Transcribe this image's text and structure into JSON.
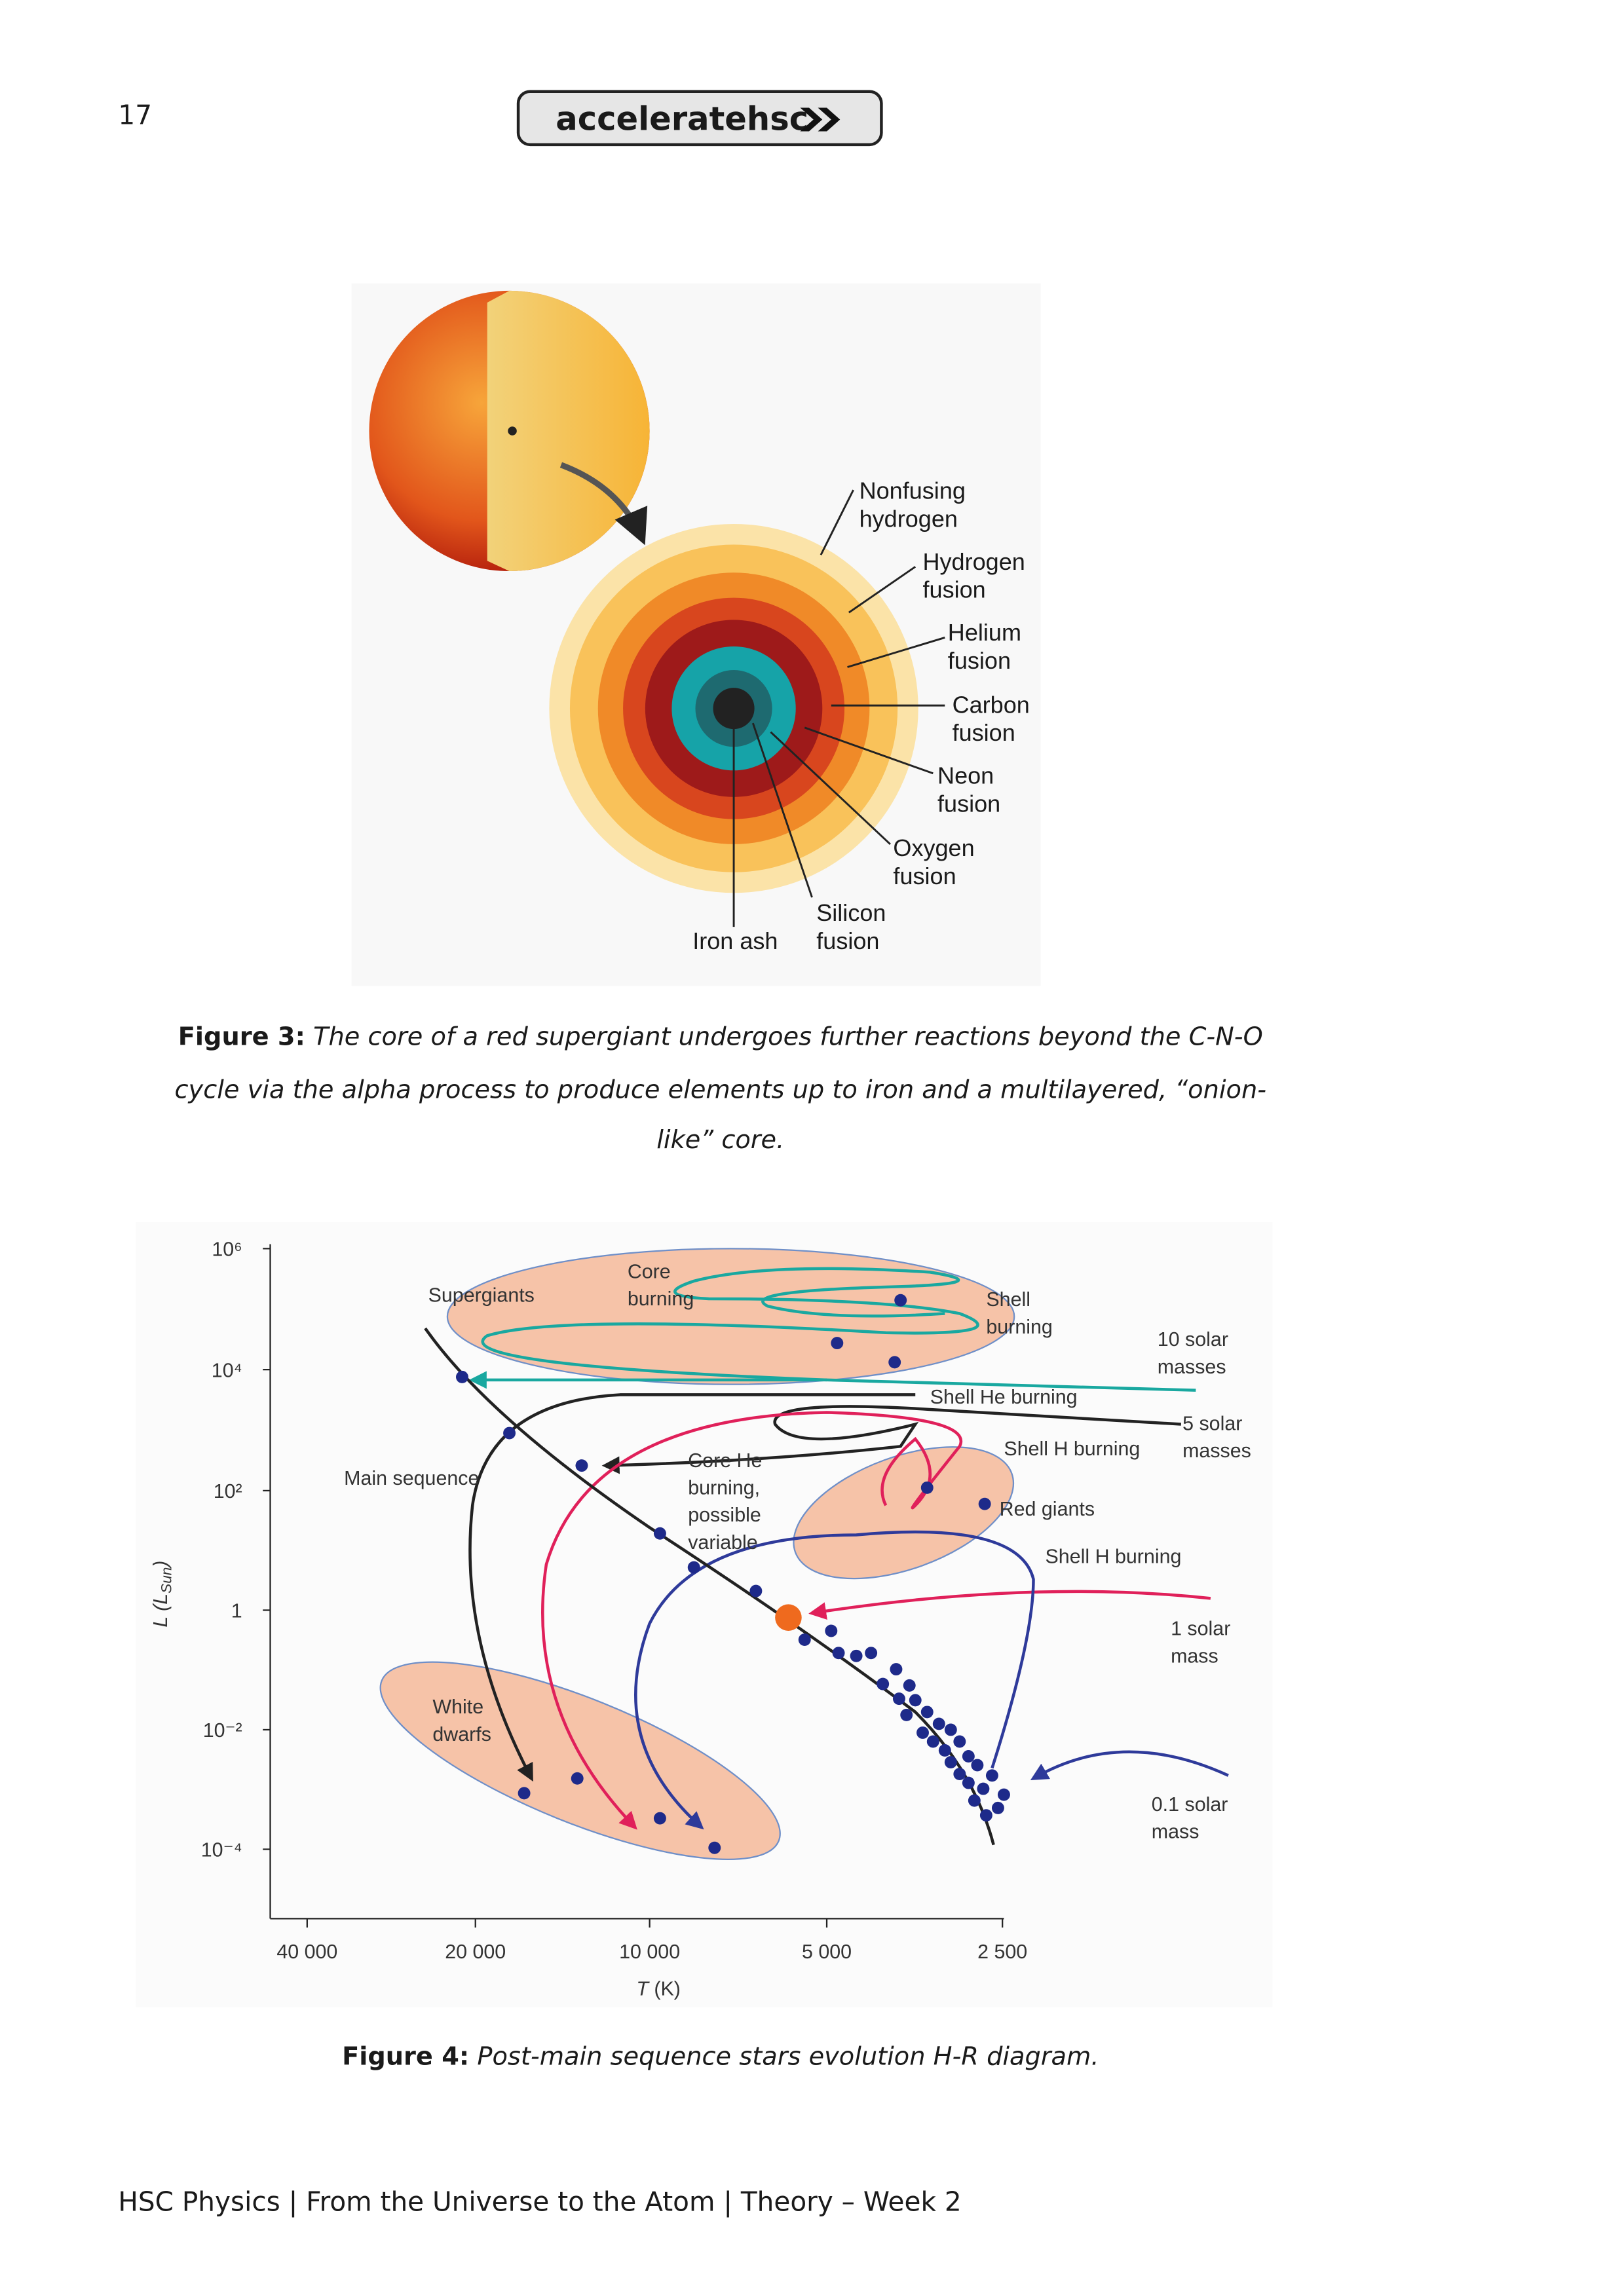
{
  "header": {
    "page_number": "17",
    "logo": "acceleratehsc"
  },
  "figure3": {
    "labels": [
      {
        "lines": [
          "Nonfusing",
          "hydrogen"
        ]
      },
      {
        "lines": [
          "Hydrogen",
          "fusion"
        ]
      },
      {
        "lines": [
          "Helium",
          "fusion"
        ]
      },
      {
        "lines": [
          "Carbon",
          "fusion"
        ]
      },
      {
        "lines": [
          "Neon",
          "fusion"
        ]
      },
      {
        "lines": [
          "Oxygen",
          "fusion"
        ]
      },
      {
        "lines": [
          "Silicon",
          "fusion"
        ]
      },
      {
        "lines": [
          "Iron ash"
        ]
      }
    ],
    "caption": {
      "label": "Figure 3:",
      "lines": [
        "The core of a red supergiant undergoes further reactions beyond the C-N-O",
        "cycle via the alpha process to produce elements up to iron and a multilayered, “onion-",
        "like” core."
      ]
    }
  },
  "figure4": {
    "yticks": [
      "10⁶",
      "10⁴",
      "10²",
      "1",
      "10⁻²",
      "10⁻⁴"
    ],
    "xticks": [
      "40 000",
      "20 000",
      "10 000",
      "5 000",
      "2 500"
    ],
    "ylabel": {
      "main": "L (L",
      "sub": "Sun",
      "close": ")"
    },
    "xlabel": {
      "symbol": "T",
      "unit": "(K)"
    },
    "annotations": [
      {
        "lines": [
          "Supergiants"
        ]
      },
      {
        "lines": [
          "Core",
          "burning"
        ]
      },
      {
        "lines": [
          "Shell",
          "burning"
        ]
      },
      {
        "lines": [
          "10 solar",
          "masses"
        ]
      },
      {
        "lines": [
          "Shell He burning"
        ]
      },
      {
        "lines": [
          "5 solar",
          "masses"
        ]
      },
      {
        "lines": [
          "Shell H burning"
        ]
      },
      {
        "lines": [
          "Main sequence"
        ]
      },
      {
        "lines": [
          "Core He",
          "burning,",
          "possible",
          "variable"
        ]
      },
      {
        "lines": [
          "Red giants"
        ]
      },
      {
        "lines": [
          "Shell H burning"
        ]
      },
      {
        "lines": [
          "1 solar",
          "mass"
        ]
      },
      {
        "lines": [
          "White",
          "dwarfs"
        ]
      },
      {
        "lines": [
          "0.1 solar",
          "mass"
        ]
      }
    ],
    "caption": {
      "label": "Figure 4:",
      "text": "Post-main sequence stars evolution H-R diagram."
    }
  },
  "footer": {
    "text": "HSC Physics | From the Universe to the Atom | Theory – Week 2"
  }
}
